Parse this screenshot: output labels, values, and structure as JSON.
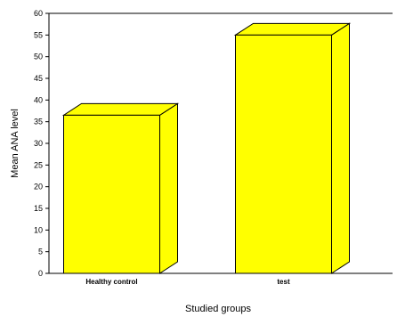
{
  "chart_data": {
    "type": "bar",
    "style": "3d",
    "categories": [
      "Healthy control",
      "test"
    ],
    "values": [
      36.5,
      55
    ],
    "xlabel": "Studied groups",
    "ylabel": "Mean ANA level",
    "ylim": [
      0,
      60
    ],
    "yticks": [
      0,
      5,
      10,
      15,
      20,
      25,
      30,
      35,
      40,
      45,
      50,
      55,
      60
    ],
    "grid": false,
    "bar_color": "#ffff00",
    "outline_color": "#000000"
  }
}
